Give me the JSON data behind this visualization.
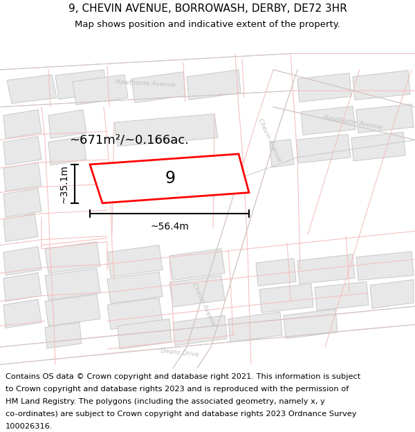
{
  "title_line1": "9, CHEVIN AVENUE, BORROWASH, DERBY, DE72 3HR",
  "title_line2": "Map shows position and indicative extent of the property.",
  "map_bg": "#ffffff",
  "block_fill": "#e8e8e8",
  "block_edge": "#c8c8c8",
  "pink": "#f5c0c0",
  "plot_edge": "#ff0000",
  "plot_fill": "#ffffff",
  "street_color": "#c8c8c8",
  "street_label_color": "#c0c0c0",
  "annotation_color": "#111111",
  "area_text": "~671m²/~0.166ac.",
  "width_text": "~56.4m",
  "height_text": "~35.1m",
  "number_text": "9",
  "title_fontsize": 11,
  "subtitle_fontsize": 9.5,
  "footer_fontsize": 8.2,
  "footer_lines": [
    "Contains OS data © Crown copyright and database right 2021. This information is subject",
    "to Crown copyright and database rights 2023 and is reproduced with the permission of",
    "HM Land Registry. The polygons (including the associated geometry, namely x, y",
    "co-ordinates) are subject to Crown copyright and database rights 2023 Ordnance Survey",
    "100026316."
  ]
}
